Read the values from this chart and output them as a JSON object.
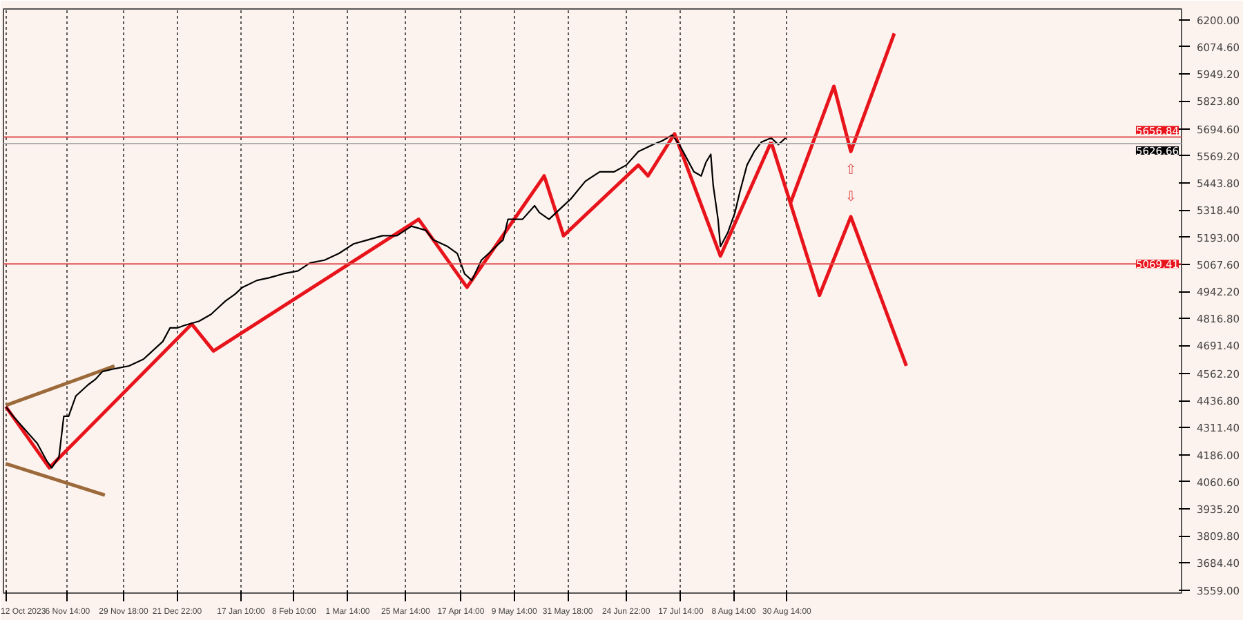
{
  "chart_data": {
    "type": "line",
    "xlim": [
      "2023-10-11",
      "2025-02-10"
    ],
    "xticks": [
      {
        "value": "2023-10-12",
        "label": "12 Oct 2023"
      },
      {
        "value": "2023-11-06T14:00",
        "label": "6 Nov 14:00"
      },
      {
        "value": "2023-11-29T18:00",
        "label": "29 Nov 18:00"
      },
      {
        "value": "2023-12-21T22:00",
        "label": "21 Dec 22:00"
      },
      {
        "value": "2024-01-17T10:00",
        "label": "17 Jan 10:00"
      },
      {
        "value": "2024-02-08T10:00",
        "label": "8 Feb 10:00"
      },
      {
        "value": "2024-03-01T14:00",
        "label": "1 Mar 14:00"
      },
      {
        "value": "2024-03-25T14:00",
        "label": "25 Mar 14:00"
      },
      {
        "value": "2024-04-17T14:00",
        "label": "17 Apr 14:00"
      },
      {
        "value": "2024-05-09T14:00",
        "label": "9 May 14:00"
      },
      {
        "value": "2024-05-31T18:00",
        "label": "31 May 18:00"
      },
      {
        "value": "2024-06-24T22:00",
        "label": "24 Jun 22:00"
      },
      {
        "value": "2024-07-17T14:00",
        "label": "17 Jul 14:00"
      },
      {
        "value": "2024-08-08T14:00",
        "label": "8 Aug 14:00"
      },
      {
        "value": "2024-08-30T14:00",
        "label": "30 Aug 14:00"
      }
    ],
    "ylim": [
      3545,
      6250
    ],
    "yticks": [
      {
        "value": 6200,
        "label": "6200.00"
      },
      {
        "value": 6074.6,
        "label": "6074.60"
      },
      {
        "value": 5949.2,
        "label": "5949.20"
      },
      {
        "value": 5823.8,
        "label": "5823.80"
      },
      {
        "value": 5694.6,
        "label": "5694.60"
      },
      {
        "value": 5569.2,
        "label": "5569.20"
      },
      {
        "value": 5443.8,
        "label": "5443.80"
      },
      {
        "value": 5318.4,
        "label": "5318.40"
      },
      {
        "value": 5193,
        "label": "5193.00"
      },
      {
        "value": 5067.6,
        "label": "5067.60"
      },
      {
        "value": 4942.2,
        "label": "4942.20"
      },
      {
        "value": 4816.8,
        "label": "4816.80"
      },
      {
        "value": 4691.4,
        "label": "4691.40"
      },
      {
        "value": 4562.2,
        "label": "4562.20"
      },
      {
        "value": 4436.8,
        "label": "4436.80"
      },
      {
        "value": 4311.4,
        "label": "4311.40"
      },
      {
        "value": 4186,
        "label": "4186.00"
      },
      {
        "value": 4060.6,
        "label": "4060.60"
      },
      {
        "value": 3935.2,
        "label": "3935.20"
      },
      {
        "value": 3809.8,
        "label": "3809.80"
      },
      {
        "value": 3684.4,
        "label": "3684.40"
      },
      {
        "value": 3559,
        "label": "3559.00"
      }
    ],
    "grid": "x",
    "series": [
      {
        "color": "#000000",
        "x": [
          "2023-10-12",
          "2023-10-15",
          "2023-10-20",
          "2023-10-25",
          "2023-10-29",
          "2023-10-31",
          "2023-11-03",
          "2023-11-05",
          "2023-11-07",
          "2023-11-10",
          "2023-11-15",
          "2023-11-18",
          "2023-11-21",
          "2023-11-26",
          "2023-12-02",
          "2023-12-08",
          "2023-12-11",
          "2023-12-16",
          "2023-12-19",
          "2023-12-22",
          "2023-12-25",
          "2023-12-31",
          "2024-01-05",
          "2024-01-08",
          "2024-01-11",
          "2024-01-15",
          "2024-01-18",
          "2024-01-24",
          "2024-01-29",
          "2024-02-04",
          "2024-02-10",
          "2024-02-15",
          "2024-02-21",
          "2024-02-27",
          "2024-03-04",
          "2024-03-10",
          "2024-03-16",
          "2024-03-22",
          "2024-03-28",
          "2024-04-03",
          "2024-04-06",
          "2024-04-12",
          "2024-04-16",
          "2024-04-19",
          "2024-04-22",
          "2024-04-26",
          "2024-04-29",
          "2024-05-02",
          "2024-05-05",
          "2024-05-07",
          "2024-05-13",
          "2024-05-18",
          "2024-05-20",
          "2024-05-24",
          "2024-05-30",
          "2024-06-02",
          "2024-06-08",
          "2024-06-14",
          "2024-06-20",
          "2024-06-25",
          "2024-06-30",
          "2024-07-06",
          "2024-07-10",
          "2024-07-14",
          "2024-07-17",
          "2024-07-20",
          "2024-07-23",
          "2024-07-26",
          "2024-07-28",
          "2024-07-30",
          "2024-07-31",
          "2024-08-02",
          "2024-08-03",
          "2024-08-06",
          "2024-08-09",
          "2024-08-11",
          "2024-08-14",
          "2024-08-17",
          "2024-08-20",
          "2024-08-24",
          "2024-08-27",
          "2024-08-30"
        ],
        "values": [
          4408,
          4364,
          4301,
          4238,
          4156,
          4125,
          4175,
          4364,
          4364,
          4458,
          4509,
          4534,
          4571,
          4584,
          4597,
          4628,
          4659,
          4710,
          4773,
          4773,
          4785,
          4804,
          4836,
          4867,
          4898,
          4930,
          4961,
          4993,
          5005,
          5024,
          5037,
          5074,
          5087,
          5118,
          5162,
          5181,
          5200,
          5200,
          5244,
          5225,
          5181,
          5150,
          5118,
          5024,
          4993,
          5087,
          5118,
          5150,
          5181,
          5276,
          5276,
          5339,
          5307,
          5276,
          5339,
          5370,
          5452,
          5496,
          5496,
          5527,
          5590,
          5622,
          5640,
          5666,
          5622,
          5559,
          5496,
          5477,
          5540,
          5577,
          5433,
          5276,
          5150,
          5213,
          5307,
          5401,
          5527,
          5590,
          5634,
          5653,
          5622,
          5653
        ]
      },
      {
        "color": "#e8141c",
        "x": [
          "2023-10-12",
          "2023-10-30",
          "2023-12-28",
          "2024-01-06",
          "2024-03-31",
          "2024-04-20",
          "2024-05-22",
          "2024-05-30",
          "2024-06-30",
          "2024-07-04",
          "2024-07-15",
          "2024-08-03",
          "2024-08-24"
        ],
        "values": [
          4408,
          4125,
          4791,
          4666,
          5276,
          4961,
          5477,
          5200,
          5527,
          5477,
          5672,
          5106,
          5634
        ]
      },
      {
        "color": "#e8141c",
        "x": [
          "2024-09-01",
          "2024-09-19",
          "2024-09-26",
          "2024-10-14"
        ],
        "values": [
          5351,
          5892,
          5590,
          6137
        ]
      },
      {
        "color": "#e8141c",
        "x": [
          "2024-08-24",
          "2024-09-13",
          "2024-09-26",
          "2024-10-19"
        ],
        "values": [
          5634,
          4924,
          5288,
          4597
        ]
      },
      {
        "color": "#9c6a3a",
        "x": [
          "2023-10-12",
          "2023-11-26"
        ],
        "values": [
          4414,
          4597
        ]
      },
      {
        "color": "#9c6a3a",
        "x": [
          "2023-10-12",
          "2023-11-22"
        ],
        "values": [
          4144,
          3999
        ]
      }
    ],
    "ref_lines": [
      {
        "axis": "y",
        "value": 5656.84,
        "label": "5656.84",
        "color": "#e05050"
      },
      {
        "axis": "y",
        "value": 5626.66,
        "label": "5626.66",
        "color": "#b0b0b0"
      },
      {
        "axis": "y",
        "value": 5069.41,
        "label": "5069.41",
        "color": "#e05050"
      }
    ],
    "annotations": [
      "⇧",
      "⇩"
    ]
  }
}
